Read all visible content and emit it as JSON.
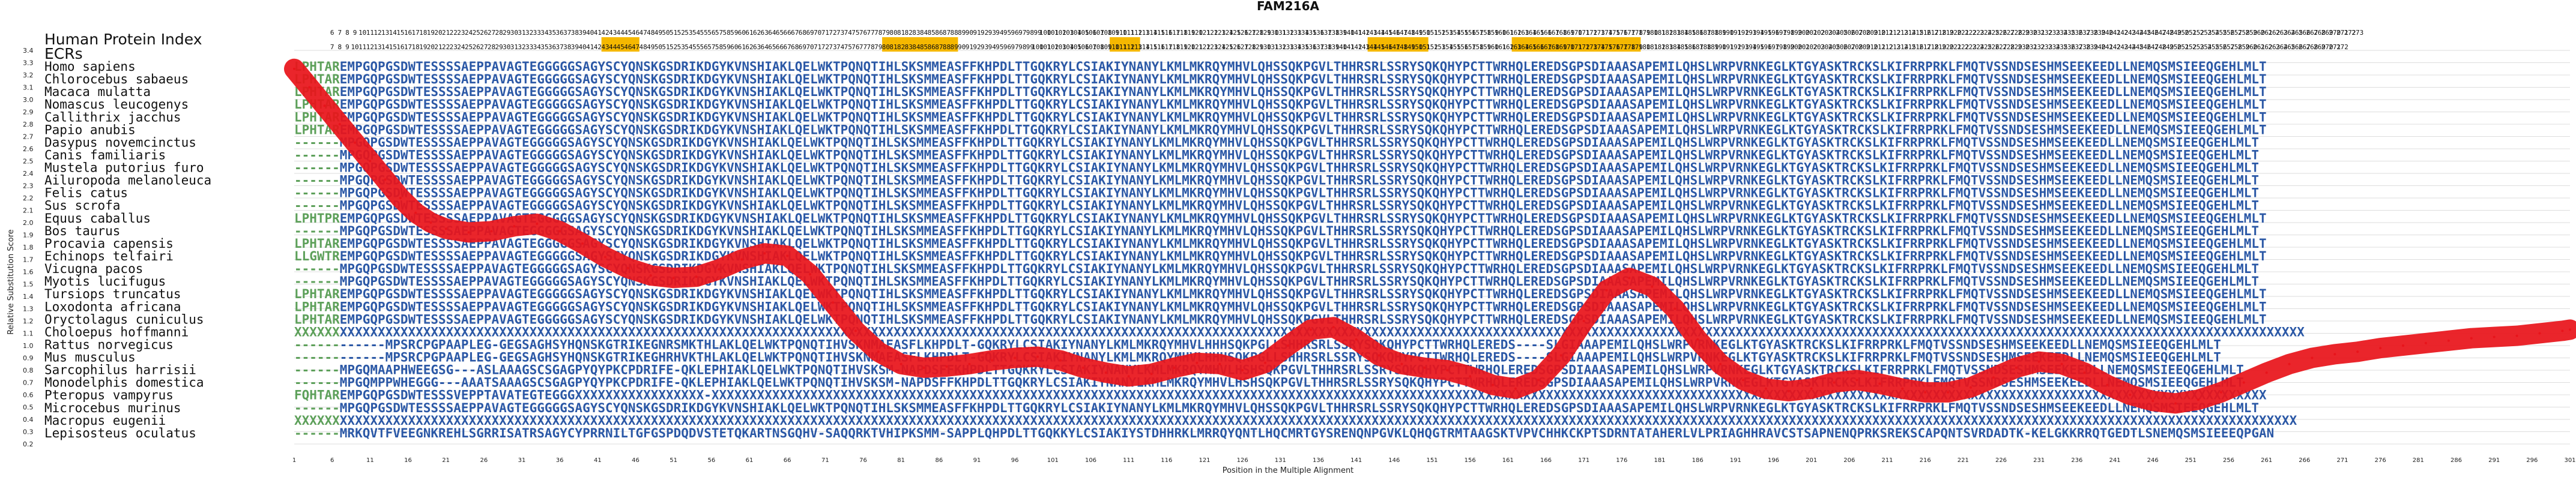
{
  "chart_data": {
    "type": "line",
    "title": "FAM216A",
    "xlabel": "Position in the Multiple Alignment",
    "ylabel": "Relative Substitution Score",
    "ylim": [
      0.2,
      3.4
    ],
    "xlim": [
      1,
      301
    ],
    "grid": true,
    "yticks": [
      "0.2",
      "0.3",
      "0.4",
      "0.5",
      "0.6",
      "0.7",
      "0.8",
      "0.9",
      "1.0",
      "1.1",
      "1.2",
      "1.3",
      "1.4",
      "1.5",
      "1.6",
      "1.7",
      "1.8",
      "1.9",
      "2.0",
      "2.1",
      "2.2",
      "2.3",
      "2.4",
      "2.5",
      "2.6",
      "2.7",
      "2.8",
      "2.9",
      "3.0",
      "3.1",
      "3.2",
      "3.3",
      "3.4"
    ],
    "xticks": [
      "1",
      "6",
      "11",
      "16",
      "21",
      "26",
      "31",
      "36",
      "41",
      "46",
      "51",
      "56",
      "61",
      "66",
      "71",
      "76",
      "81",
      "86",
      "91",
      "96",
      "101",
      "106",
      "111",
      "116",
      "121",
      "126",
      "131",
      "136",
      "141",
      "146",
      "151",
      "156",
      "161",
      "166",
      "171",
      "176",
      "181",
      "186",
      "191",
      "196",
      "201",
      "206",
      "211",
      "216",
      "221",
      "226",
      "231",
      "236",
      "241",
      "246",
      "251",
      "256",
      "261",
      "266",
      "271",
      "276",
      "281",
      "286",
      "291",
      "296",
      "301"
    ],
    "row_labels": {
      "top": "Human Protein Index",
      "second": "ECRs"
    },
    "top_index_start": 6,
    "top_index_end": 273,
    "second_index_start": 7,
    "second_index_end": 272,
    "highlight_ranges": [
      [
        42,
        46
      ],
      [
        79,
        88
      ],
      [
        109,
        112
      ],
      [
        143,
        150
      ],
      [
        162,
        178
      ]
    ],
    "highlight_color": "#f5b800",
    "species": [
      "Homo sapiens",
      "Chlorocebus sabaeus",
      "Macaca mulatta",
      "Nomascus leucogenys",
      "Callithrix jacchus",
      "Papio anubis",
      "Dasypus novemcinctus",
      "Canis familiaris",
      "Mustela putorius furo",
      "Ailuropoda melanoleuca",
      "Felis catus",
      "Sus scrofa",
      "Equus caballus",
      "Bos taurus",
      "Procavia capensis",
      "Echinops telfairi",
      "Vicugna pacos",
      "Myotis lucifugus",
      "Tursiops truncatus",
      "Loxodonta africana",
      "Oryctolagus cuniculus",
      "Choloepus hoffmanni",
      "Rattus norvegicus",
      "Mus musculus",
      "Sarcophilus harrisii",
      "Monodelphis domestica",
      "Pteropus vampyrus",
      "Microcebus murinus",
      "Macropus eugenii",
      "Lepisosteus oculatus"
    ],
    "sequences": [
      "LPHTAREMPGQPGSDWTESSSSAEPPAVAGTEGGGGGSAGYSCYQNSKGSDRIKDGYKVNSHIAKLQELWKTPQNQTIHLSKSMMEASFFKHPDLTTGQKRYLCSIAKIYNANYLKMLMKRQYMHVLQHSSQKPGVLTHHRSRLSSRYSQKQHYPCTTWRHQLEREDSGPSDIAAASAPEMILQHSLWRPVRNKEGLKTGYASKTRCKSLKIFRRPRKLFMQTVSSNDSESHMSEEKEEDLLNEMQSMSIEEQGEHLMLT",
      "LPHTAREMPGQPGSDWTESSSSAEPPAVAGTEGGGGGSAGYSCYQNSKGSDRIKDGYKVNSHIAKLQELWKTPQNQTIHLSKSMMEASFFKHPDLTTGQKRYLCSIAKIYNANYLKMLMKRQYMHVLQHSSQKPGVLTHHRSRLSSRYSQKQHYPCTTWRHQLEREDSGPSDIAAASAPEMILQHSLWRPVRNKEGLKTGYASKTRCKSLKIFRRPRKLFMQTVSSNDSESHMSEEKEEDLLNEMQSMSIEEQGEHLMLT",
      "LPHTAREMPGQPGSDWTESSSSAEPPAVAGTEGGGGGSAGYSCYQNSKGSDRIKDGYKVNSHIAKLQELWKTPQNQTIHLSKSMMEASFFKHPDLTTGQKRYLCSIAKIYNANYLKMLMKRQYMHVLQHSSQKPGVLTHHRSRLSSRYSQKQHYPCTTWRHQLEREDSGPSDIAAASAPEMILQHSLWRPVRNKEGLKTGYASKTRCKSLKIFRRPRKLFMQTVSSNDSESHMSEEKEEDLLNEMQSMSIEEQGEHLMLT",
      "LPHTAREMPGQPGSDWTESSSSAEPPAVAGTEGGGGGSAGYSCYQNSKGSDRIKDGYKVNSHIAKLQELWKTPQNQTIHLSKSMMEASFFKHPDLTTGQKRYLCSIAKIYNANYLKMLMKRQYMHVLQHSSQKPGVLTHHRSRLSSRYSQKQHYPCTTWRHQLEREDSGPSDIAAASAPEMILQHSLWRPVRNKEGLKTGYASKTRCKSLKIFRRPRKLFMQTVSSNDSESHMSEEKEEDLLNEMQSMSIEEQGEHLMLT",
      "LPHTAREMPGQPGSDWTESSSSAEPPAVAGTEGGGGGSAGYSCYQNSKGSDRIKDGYKVNSHIAKLQELWKTPQNQTIHLSKSMMEASFFKHPDLTTGQKRYLCSIAKIYNANYLKMLMKRQYMHVLQHSSQKPGVLTHHRSRLSSRYSQKQHYPCTTWRHQLEREDSGPSDIAAASAPEMILQHSLWRPVRNKEGLKTGYASKTRCKSLKIFRRPRKLFMQTVSSNDSESHMSEEKEEDLLNEMQSMSIEEQGEHLMLT",
      "LPHTAREMPGQPGSDWTESSSSAEPPAVAGTEGGGGGSAGYSCYQNSKGSDRIKDGYKVNSHIAKLQELWKTPQNQTIHLSKSMMEASFFKHPDLTTGQKRYLCSIAKIYNANYLKMLMKRQYMHVLQHSSQKPGVLTHHRSRLSSRYSQKQHYPCTTWRHQLEREDSGPSDIAAASAPEMILQHSLWRPVRNKEGLKTGYASKTRCKSLKIFRRPRKLFMQTVSSNDSESHMSEEKEEDLLNEMQSMSIEEQGEHLMLT",
      "------MPGQPGSDWTESSSSAEPPAVAGTEGGGGGSAGYSCYQNSKGSDRIKDGYKVNSHIAKLQELWKTPQNQTIHLSKSMMEASFFKHPDLTTGQKRYLCSIAKIYNANYLKMLMKRQYMHVLQHSSQKPGVLTHHRSRLSSRYSQKQHYPCTTWRHQLEREDSGPSDIAAASAPEMILQHSLWRPVRNKEGLKTGYASKTRCKSLKIFRRPRKLFMQTVSSNDSESHMSEEKEEDLLNEMQSMSIEEQGEHLMLT",
      "------MPGQPGSDWTESSSSAEPPAVAGTEGGGGGSAGYSCYQNSKGSDRIKDGYKVNSHIAKLQELWKTPQNQTIHLSKSMMEASFFKHPDLTTGQKRYLCSIAKIYNANYLKMLMKRQYMHVLQHSSQKPGVLTHHRSRLSSRYSQKQHYPCTTWRHQLEREDSGPSDIAAASAPEMILQHSLWRPVRNKEGLKTGYASKTRCKSLKIFRRPRKLFMQTVSSNDSESHMSEEKEEDLLNEMQSMSIEEQGEHLMLT",
      "------MPGQPGSDWTESSSSAEPPAVAGTEGGGGGSAGYSCYQNSKGSDRIKDGYKVNSHIAKLQELWKTPQNQTIHLSKSMMEASFFKHPDLTTGQKRYLCSIAKIYNANYLKMLMKRQYMHVLQHSSQKPGVLTHHRSRLSSRYSQKQHYPCTTWRHQLEREDSGPSDIAAASAPEMILQHSLWRPVRNKEGLKTGYASKTRCKSLKIFRRPRKLFMQTVSSNDSESHMSEEKEEDLLNEMQSMSIEEQGEHLMLT",
      "------MPGQPGSDWTESSSSAEPPAVAGTEGGGGGSAGYSCYQNSKGSDRIKDGYKVNSHIAKLQELWKTPQNQTIHLSKSMMEASFFKHPDLTTGQKRYLCSIAKIYNANYLKMLMKRQYMHVLQHSSQKPGVLTHHRSRLSSRYSQKQHYPCTTWRHQLEREDSGPSDIAAASAPEMILQHSLWRPVRNKEGLKTGYASKTRCKSLKIFRRPRKLFMQTVSSNDSESHMSEEKEEDLLNEMQSMSIEEQGEHLMLT",
      "------MPGQPGSDWTESSSSAEPPAVAGTEGGGGGSAGYSCYQNSKGSDRIKDGYKVNSHIAKLQELWKTPQNQTIHLSKSMMEASFFKHPDLTTGQKRYLCSIAKIYNANYLKMLMKRQYMHVLQHSSQKPGVLTHHRSRLSSRYSQKQHYPCTTWRHQLEREDSGPSDIAAASAPEMILQHSLWRPVRNKEGLKTGYASKTRCKSLKIFRRPRKLFMQTVSSNDSESHMSEEKEEDLLNEMQSMSIEEQGEHLMLT",
      "------MPGQPGSDWTESSSSAEPPAVAGTEGGGGGSAGYSCYQNSKGSDRIKDGYKVNSHIAKLQELWKTPQNQTIHLSKSMMEASFFKHPDLTTGQKRYLCSIAKIYNANYLKMLMKRQYMHVLQHSSQKPGVLTHHRSRLSSRYSQKQHYPCTTWRHQLEREDSGPSDIAAASAPEMILQHSLWRPVRNKEGLKTGYASKTRCKSLKIFRRPRKLFMQTVSSNDSESHMSEEKEEDLLNEMQSMSIEEQGEHLMLT",
      "LPHTPREMPGQPGSDWTESSSSAEPPAVAGTEGGGGGSAGYSCYQNSKGSDRIKDGYKVNSHIAKLQELWKTPQNQTIHLSKSMMEASFFKHPDLTTGQKRYLCSIAKIYNANYLKMLMKRQYMHVLQHSSQKPGVLTHHRSRLSSRYSQKQHYPCTTWRHQLEREDSGPSDIAAASAPEMILQHSLWRPVRNKEGLKTGYASKTRCKSLKIFRRPRKLFMQTVSSNDSESHMSEEKEEDLLNEMQSMSIEEQGEHLMLT",
      "------MPGQPGSDWTESSSSAEPPAVAGTEGGGGGSAGYSCYQNSKGSDRIKDGYKVNSHIAKLQELWKTPQNQTIHLSKSMMEASFFKHPDLTTGQKRYLCSIAKIYNANYLKMLMKRQYMHVLQHSSQKPGVLTHHRSRLSSRYSQKQHYPCTTWRHQLEREDSGPSDIAAASAPEMILQHSLWRPVRNKEGLKTGYASKTRCKSLKIFRRPRKLFMQTVSSNDSESHMSEEKEEDLLNEMQSMSIEEQGEHLMLT",
      "LPHTAREMPGQPGSDWTESSSSAEPPAVAGTEGGGGGSAGYSCYQNSKGSDRIKDGYKVNSHIAKLQELWKTPQNQTIHLSKSMMEASFFKHPDLTTGQKRYLCSIAKIYNANYLKMLMKRQYMHVLQHSSQKPGVLTHHRSRLSSRYSQKQHYPCTTWRHQLEREDSGPSDIAAASAPEMILQHSLWRPVRNKEGLKTGYASKTRCKSLKIFRRPRKLFMQTVSSNDSESHMSEEKEEDLLNEMQSMSIEEQGEHLMLT",
      "LLGWTREMPGQPGSDWTESSSSAEPPAVAGTEGGGGGSAGYSCYQNSKGSDRIKDGYKVNSHIAKLQELWKTPQNQTIHLSKSMMEASFFKHPDLTTGQKRYLCSIAKIYNANYLKMLMKRQYMHVLQHSSQKPGVLTHHRSRLSSRYSQKQHYPCTTWRHQLEREDSGPSDIAAASAPEMILQHSLWRPVRNKEGLKTGYASKTRCKSLKIFRRPRKLFMQTVSSNDSESHMSEEKEEDLLNEMQSMSIEEQGEHLMLT",
      "------MPGQPGSDWTESSSSAEPPAVAGTEGGGGGSAGYSCYQNSKGSDRIKDGYKVNSHIAKLQELWKTPQNQTIHLSKSMMEASFFKHPDLTTGQKRYLCSIAKIYNANYLKMLMKRQYMHVLQHSSQKPGVLTHHRSRLSSRYSQKQHYPCTTWRHQLEREDSGPSDIAAASAPEMILQHSLWRPVRNKEGLKTGYASKTRCKSLKIFRRPRKLFMQTVSSNDSESHMSEEKEEDLLNEMQSMSIEEQGEHLMLT",
      "------MPGQPGSDWTESSSSAEPPAVAGTEGGGGGSAGYSCYQNSKGSDRIKDGYKVNSHIAKLQELWKTPQNQTIHLSKSMMEASFFKHPDLTTGQKRYLCSIAKIYNANYLKMLMKRQYMHVLQHSSQKPGVLTHHRSRLSSRYSQKQHYPCTTWRHQLEREDSGPSDIAAASAPEMILQHSLWRPVRNKEGLKTGYASKTRCKSLKIFRRPRKLFMQTVSSNDSESHMSEEKEEDLLNEMQSMSIEEQGEHLMLT",
      "LPHTAREMPGQPGSDWTESSSSAEPPAVAGTEGGGGGSAGYSCYQNSKGSDRIKDGYKVNSHIAKLQELWKTPQNQTIHLSKSMMEASFFKHPDLTTGQKRYLCSIAKIYNANYLKMLMKRQYMHVLQHSSQKPGVLTHHRSRLSSRYSQKQHYPCTTWRHQLEREDSGPSDIAAASAPEMILQHSLWRPVRNKEGLKTGYASKTRCKSLKIFRRPRKLFMQTVSSNDSESHMSEEKEEDLLNEMQSMSIEEQGEHLMLT",
      "LPHTAREMPGQPGSDWTESSSSAEPPAVAGTEGGGGGSAGYSCYQNSKGSDRIKDGYKVNSHIAKLQELWKTPQNQTIHLSKSMMEASFFKHPDLTTGQKRYLCSIAKIYNANYLKMLMKRQYMHVLQHSSQKPGVLTHHRSRLSSRYSQKQHYPCTTWRHQLEREDSGPSDIAAASAPEMILQHSLWRPVRNKEGLKTGYASKTRCKSLKIFRRPRKLFMQTVSSNDSESHMSEEKEEDLLNEMQSMSIEEQGEHLMLT",
      "LPHTAREMPGQPGSDWTESSSSAEPPAVAGTEGGGGGSAGYSCYQNSKGSDRIKDGYKVNSHIAKLQELWKTPQNQTIHLSKSMMEASFFKHPDLTTGQKRYLCSIAKIYNANYLKMLMKRQYMHVLQHSSQKPGVLTHHRSRLSSRYSQKQHYPCTTWRHQLEREDSGPSDIAAASAPEMILQHSLWRPVRNKEGLKTGYASKTRCKSLKIFRRPRKLFMQTVSSNDSESHMSEEKEEDLLNEMQSMSIEEQGEHLMLT",
      "XXXXXXXXXXXXXXXXXXXXXXXXXXXXXXXXXXXXXXXXXXXXXXXXXXXXXXXXXXXXXXXXXXXXXXXXXXXXXXXXXXXXXXXXXXXXXXXXXXXXXXXXXXXXXXXXXXXXXXXXXXXXXXXXXXXXXXXXXXXXXXXXXXXXXXXXXXXXXXXXXXXXXXXXXXXXXXXXXXXXXXXXXXXXXXXXXXXXXXXXXXXXXXXXXXXXXXXXXXXXXXXXXXXXXXXXXXXXXXXXXXXXXXXXXXXXXXXXXXXXXXXXX",
      "------------MPSRCPGPAAPLEG-GEGSAGHSYHQNSKGTRIKEGNRSMKTHLAKLQELWKTPQNQTIHVSKNMAEASFLKHPDLT-GQKRYLCSIAKIYNANYLKMLMKRQYMHVLHHHSQKPGLLSHHRSRLSSRYSQKQHYPCTTWRHQLEREDS----SLGIAAAPEMILQHSLWRPVRNKEGLKTGYASKTRCKSLKIFRRPRKLFMQTVSSNDSESHMSEEKEEDLLNEMQSMSIEEQGEHLMLT",
      "------------MPSRCPGPAAPLEG-GEGSAGHSYHQNSKGTRIKEGHRHVKTHLAKLQELWKTPQNQTIHVSKNMAEASFLKHPDLT-GQKRYLCSIAKIYNANYLKMLMKRQYMHVLHHHSQKPGLLSHHRSRLSSRYSQKQHYPCTTWRHQLEREDS----SLGIAAAPEMILQHSLWRPVRNKEGLKTGYASKTRCKSLKIFRRPRKLFMQTVSSNDSESHMSEEKEEDLLNEMQSMSIEEQGEHLMLT",
      "------MPGQMAAPHWEEGSG---ASLAAAGSCSGAGPYQYPKCPDRIFE-QKLEPHIAKLQELWKTPQNQTIHVSKSM-NAPDSFFKHPDLTTGQKRYLCSIAKIYNANYLKMLMKRQYMHVLHSHSQKPGVLTHHRSRLSSRYSQKQHYPCTTWRHQLEREDSGPSDIAAASAPEMILQHSLWRPVRNKEGLKTGYASKTRCKSLKIFRRPRKLFMQTVSSNDSESHMSEEKEEDLLNEMQSMSIEEQGEHLMLT",
      "------MPGQMPPWHEGGG---AAATSAAAGSCSGAGPYQYPKCPDRIFE-QKLEPHIAKLQELWKTPQNQTIHVSKSM-NAPDSFFKHPDLTTGQKRYLCSIAKIYNANYLKMLMKRQYMHVLHSHSQKPGVLTHHRSRLSSRYSQKQHYPCTTWRHQLEREDSGPSDIAAASAPEMILQHSLWRPVRNKEGLKTGYASKTRCKSLKIFRRPRKLFMQTVSSNDSESHMSEEKEEDLLNEMQSMSIEEQGEHLMLT",
      "FQHTAREMPGQPGSDWTESSSVEPPTAVATEGTEGGGXXXXXXXXXXXXXXXXX-XXXXXXXXXXXXXXXXXXXXXXXXXXXXXXXXXXXXXXXXXXXXXXXXXXXXXXXXXXXXXXXXXXXXXXXXXXXXXXXXXXXXXXXXXXXXXXXXXXXXXXXXXXXXXXXXXXXXXXXXXXXXXXXXXXXXXXXXXXXXXXXXXXXXXXXXXXXXXXXXXXXXXXXXXXXXXXXXXXXXXXXXXXXXXXXXXXXXXXXXXXXXX",
      "------MPGQPGSDWTESSSSAEPPAVAGTEGGGGGSAGYSCYQNSKGSDRIKDGYKVNSHIAKLQELWKTPQNQTIHLSKSMMEASFFKHPDLTTGQKRYLCSIAKIYNANYLKMLMKRQYMHVLQHSSQKPGVLTHHRSRLSSRYSQKQHYPCTTWRHQLEREDSGPSDIAAASAPEMILQHSLWRPVRNKEGLKTGYASKTRCKSLKIFRRPRKLFMQTVSSNDSESHMSEEKEEDLLNEMQSMSIEEQGEHLMLT",
      "XXXXXXXXXXXXXXXXXXXXXXXXXXXXXXXXXXXXXXXXXXXXXXXXXXXXXXXXXXXXXXXXXXXXXXXXXXXXXXXXXXXXXXXXXXXXXXXXXXXXXXXXXXXXXXXXXXXXXXXXXXXXXXXXXXXXXXXXXXXXXXXXXXXXXXXXXXXXXXXXXXXXXXXXXXXXXXXXXXXXXXXXXXXXXXXXXXXXXXXXXXXXXXXXXXXXXXXXXXXXXXXXXXXXXXXXXXXXXXXXXXXXXXXXXXXXXXXXXXXXXXXX",
      "------MRKQVTFVEEGNKREHLSGRRISATRSAGYCYPRRNILTGFGSPDQDVSTETQKARTNSGQHV-SAQQRKTVHIPKSMM-SAPPLQHPDLTTGQKKYLCSIAKIYSTDHHRKLMRRQYQNTLHQCMRTGYSRENQNPGVKLQHQGTRMTAAGSKTVPVCHHKCKPTSDRNTATAHERLVLPRIAGHHRAVCSTSAPNENQPRKSREKSCAPQNTSVRDADTK-KELGKKRRQTGEDTLSNEMQSMSIEEEQPGAN"
    ],
    "curve": {
      "name": "",
      "x": [
        1,
        3,
        5,
        7,
        9,
        11,
        13,
        15,
        17,
        19,
        21,
        24,
        27,
        30,
        33,
        36,
        39,
        42,
        45,
        48,
        51,
        54,
        57,
        60,
        63,
        66,
        69,
        72,
        75,
        78,
        81,
        84,
        87,
        90,
        93,
        96,
        99,
        102,
        105,
        108,
        111,
        114,
        117,
        120,
        123,
        126,
        129,
        132,
        135,
        138,
        141,
        144,
        147,
        150,
        153,
        156,
        159,
        162,
        165,
        168,
        171,
        174,
        177,
        180,
        183,
        186,
        189,
        192,
        195,
        198,
        201,
        204,
        207,
        210,
        213,
        216,
        219,
        222,
        225,
        228,
        231,
        234,
        237,
        240,
        243,
        246,
        249,
        252,
        255,
        258,
        261,
        264,
        267,
        270,
        273,
        276,
        279,
        282,
        285,
        288,
        291,
        294,
        297,
        300,
        301
      ],
      "y": [
        3.25,
        3.1,
        2.95,
        2.8,
        2.65,
        2.5,
        2.35,
        2.2,
        2.08,
        2.0,
        1.95,
        1.92,
        1.93,
        1.97,
        1.99,
        1.93,
        1.83,
        1.72,
        1.63,
        1.57,
        1.55,
        1.56,
        1.62,
        1.7,
        1.75,
        1.73,
        1.58,
        1.35,
        1.12,
        0.95,
        0.85,
        0.82,
        0.83,
        0.85,
        0.88,
        0.9,
        0.91,
        0.88,
        0.82,
        0.78,
        0.75,
        0.77,
        0.82,
        0.86,
        0.85,
        0.8,
        0.86,
        1.0,
        1.13,
        1.15,
        1.05,
        0.92,
        0.85,
        0.82,
        0.8,
        0.75,
        0.68,
        0.65,
        0.72,
        0.92,
        1.2,
        1.45,
        1.55,
        1.48,
        1.3,
        1.05,
        0.85,
        0.72,
        0.65,
        0.63,
        0.65,
        0.7,
        0.72,
        0.69,
        0.65,
        0.62,
        0.62,
        0.66,
        0.74,
        0.82,
        0.87,
        0.85,
        0.78,
        0.68,
        0.6,
        0.55,
        0.53,
        0.56,
        0.62,
        0.7,
        0.78,
        0.85,
        0.9,
        0.93,
        0.95,
        0.98,
        1.0,
        1.02,
        1.04,
        1.06,
        1.07,
        1.08,
        1.1,
        1.12,
        1.13
      ],
      "color": "#e8141b"
    },
    "colors": {
      "highlight_residue": "#2b58a6",
      "ecr_residue": "#5da05a",
      "gap_residue": "#2b58a6",
      "unknown_residue": "#2b58a6",
      "curve": "#e8141b",
      "grid": "#dddddd"
    }
  }
}
